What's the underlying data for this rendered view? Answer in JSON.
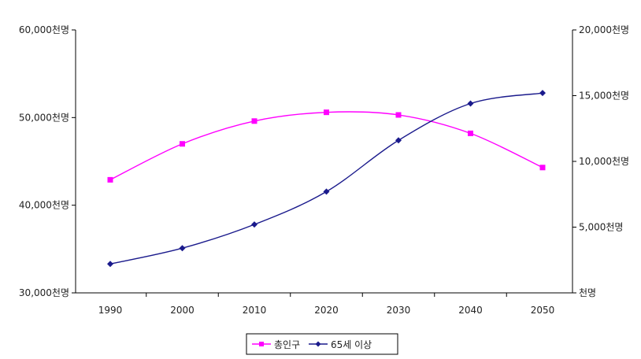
{
  "chart_data": {
    "type": "line",
    "x": [
      1990,
      2000,
      2010,
      2020,
      2030,
      2040,
      2050
    ],
    "series": [
      {
        "name": "총인구",
        "axis": "left",
        "color": "#ff00ff",
        "marker": "square",
        "values": [
          42900,
          47000,
          49600,
          50600,
          50300,
          48200,
          44300
        ]
      },
      {
        "name": "65세 이상",
        "axis": "right",
        "color": "#1a1a8c",
        "marker": "diamond",
        "values": [
          2200,
          3400,
          5200,
          7700,
          11600,
          14400,
          15200
        ]
      }
    ],
    "y_left": {
      "ylim": [
        30000,
        60000
      ],
      "ticks": [
        30000,
        40000,
        50000,
        60000
      ],
      "tick_labels": [
        "30,000천명",
        "40,000천명",
        "50,000천명",
        "60,000천명"
      ]
    },
    "y_right": {
      "ylim": [
        0,
        20000
      ],
      "ticks": [
        0,
        5000,
        10000,
        15000,
        20000
      ],
      "tick_labels": [
        "천명",
        "5,000천명",
        "10,000천명",
        "15,000천명",
        "20,000천명"
      ]
    },
    "x_tick_labels": [
      "1990",
      "2000",
      "2010",
      "2020",
      "2030",
      "2040",
      "2050"
    ],
    "grid": false,
    "legend_position": "bottom"
  }
}
